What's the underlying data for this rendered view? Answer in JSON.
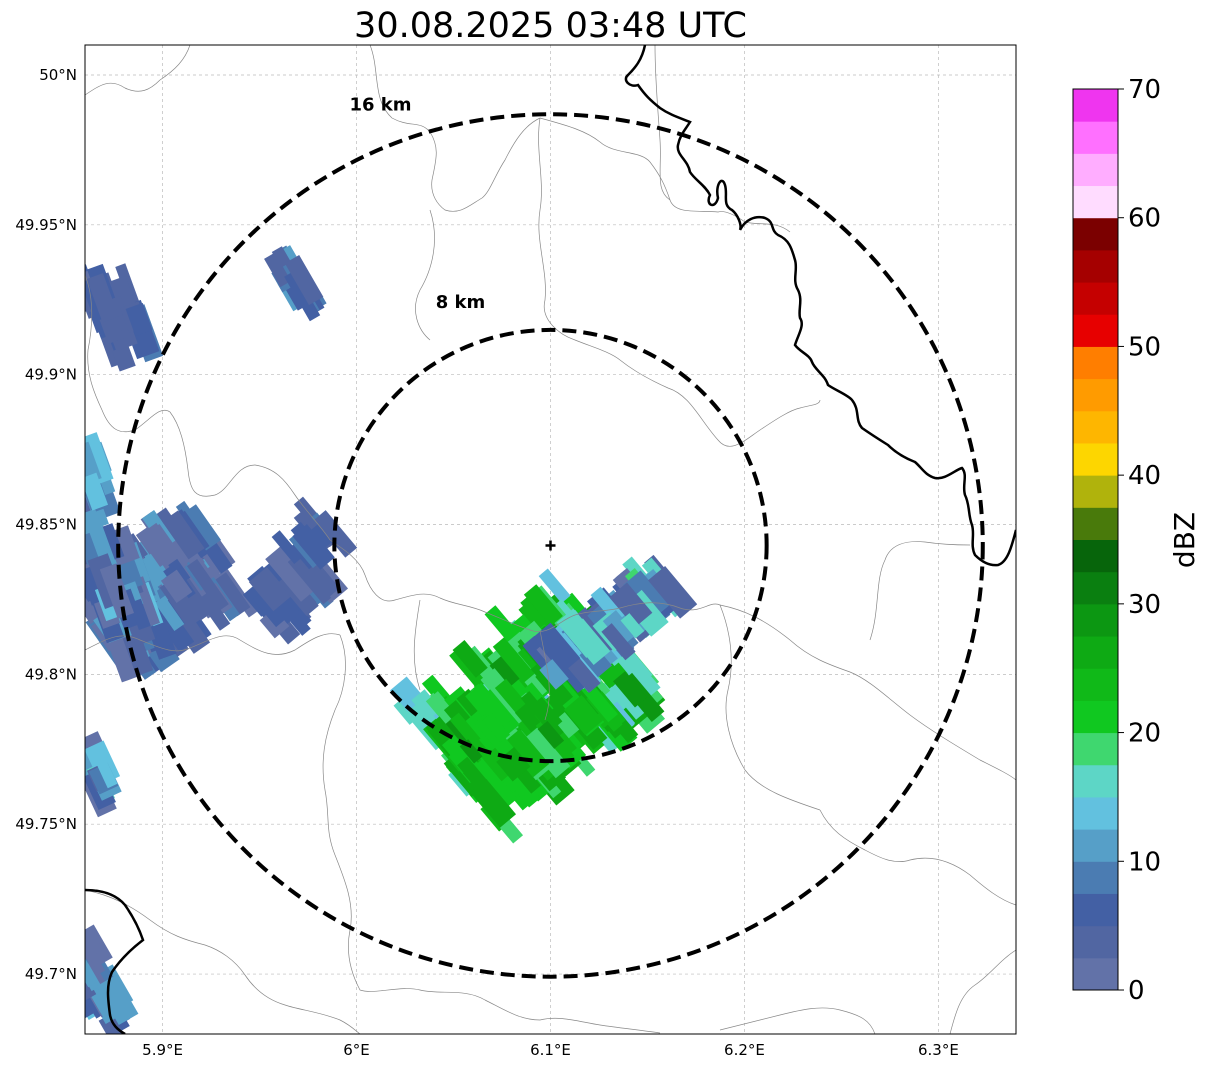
{
  "map": {
    "title": "30.08.2025 03:48 UTC",
    "lat_ticks": [
      "50°N",
      "49.95°N",
      "49.9°N",
      "49.85°N",
      "49.8°N",
      "49.75°N",
      "49.7°N"
    ],
    "lat_values": [
      50.0,
      49.95,
      49.9,
      49.85,
      49.8,
      49.75,
      49.7
    ],
    "lon_ticks": [
      "5.9°E",
      "6°E",
      "6.1°E",
      "6.2°E",
      "6.3°E"
    ],
    "lon_values": [
      5.9,
      6.0,
      6.1,
      6.2,
      6.3
    ],
    "extent": {
      "lon_min": 5.86,
      "lon_max": 6.34,
      "lat_min": 49.68,
      "lat_max": 50.01
    },
    "radar_site": {
      "lon": 6.1,
      "lat": 49.843
    },
    "rings": [
      {
        "label": "16 km",
        "radius_km": 16
      },
      {
        "label": "8 km",
        "radius_km": 8
      }
    ]
  },
  "colorbar": {
    "label": "dBZ",
    "ticks": [
      "0",
      "10",
      "20",
      "30",
      "40",
      "50",
      "60",
      "70"
    ],
    "range": [
      0,
      70
    ],
    "step": 2.5,
    "colors": [
      "#6272a8",
      "#5166a2",
      "#4360a4",
      "#4b7cb2",
      "#569fc8",
      "#62c1df",
      "#5dd6c6",
      "#3fd76f",
      "#10c820",
      "#10b918",
      "#0eaa14",
      "#0c9712",
      "#0a7f10",
      "#07650b",
      "#497a0b",
      "#b0b30c",
      "#fdd600",
      "#feb600",
      "#ff9b00",
      "#ff7e00",
      "#e70000",
      "#c50000",
      "#a50000",
      "#7b0000",
      "#ffdcff",
      "#ffadff",
      "#ff70ff",
      "#ef35ef"
    ]
  }
}
